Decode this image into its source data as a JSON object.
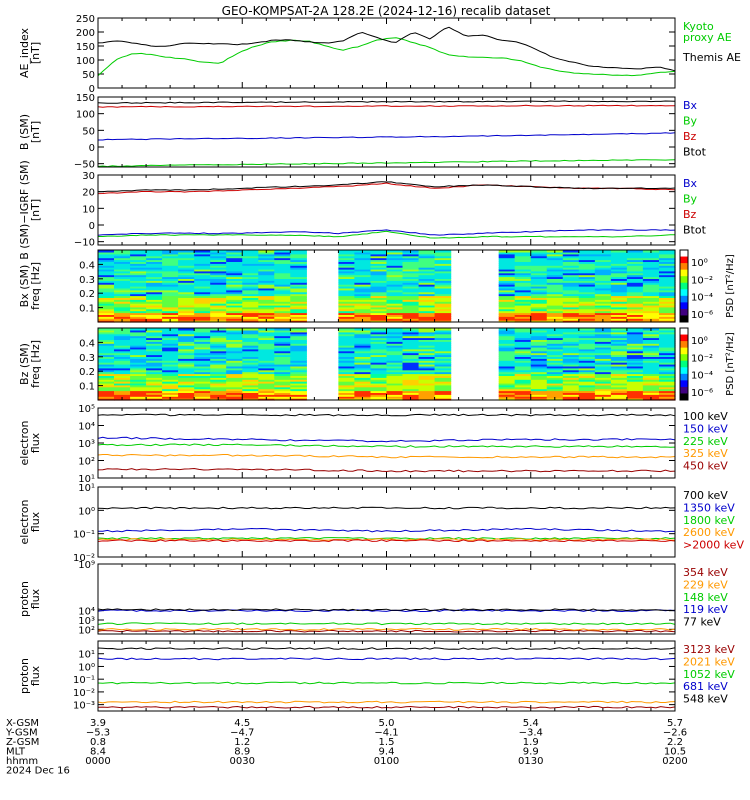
{
  "chart_data": {
    "type": "line",
    "title": "GEO-KOMPSAT-2A 128.2E (2024-12-16) recalib dataset",
    "x_range": [
      "0000",
      "0200"
    ],
    "panels": [
      {
        "id": "ae",
        "ylabel": [
          "AE_index",
          "[nT]"
        ],
        "ylim": [
          0,
          250
        ],
        "yscale": "linear",
        "yticks": [
          "0",
          "50",
          "100",
          "150",
          "200",
          "250"
        ],
        "series": [
          {
            "name": "Kyoto\nproxy AE",
            "color": "#00cc00",
            "values": [
              45,
              100,
              125,
              120,
              110,
              105,
              92,
              88,
              125,
              150,
              165,
              170,
              168,
              150,
              135,
              150,
              172,
              180,
              162,
              145,
              118,
              112,
              110,
              108,
              100,
              80,
              65,
              55,
              50,
              48,
              45,
              45,
              55,
              60
            ]
          },
          {
            "name": "Themis AE",
            "color": "#000000",
            "values": [
              160,
              170,
              160,
              150,
              150,
              160,
              158,
              158,
              155,
              160,
              170,
              172,
              165,
              160,
              168,
              200,
              180,
              160,
              200,
              175,
              220,
              185,
              190,
              170,
              165,
              140,
              110,
              95,
              80,
              75,
              70,
              68,
              75,
              62
            ]
          }
        ]
      },
      {
        "id": "bsm",
        "ylabel": [
          "B (SM)",
          "[nT]"
        ],
        "ylim": [
          -60,
          150
        ],
        "yscale": "linear",
        "yticks": [
          "−50",
          "0",
          "50",
          "100",
          "150"
        ],
        "series": [
          {
            "name": "Bx",
            "color": "#0000cc",
            "values": [
              22,
              24,
              26,
              28,
              30,
              32,
              35,
              38,
              42
            ]
          },
          {
            "name": "By",
            "color": "#00cc00",
            "values": [
              -58,
              -55,
              -52,
              -50,
              -48,
              -45,
              -42,
              -40,
              -38
            ]
          },
          {
            "name": "Bz",
            "color": "#cc0000",
            "values": [
              120,
              121,
              122,
              122,
              123,
              123,
              124,
              124,
              124
            ]
          },
          {
            "name": "Btot",
            "color": "#000000",
            "values": [
              132,
              133,
              134,
              135,
              136,
              136,
              137,
              137,
              137
            ]
          }
        ]
      },
      {
        "id": "bigrf",
        "ylabel": [
          "B (SM)−IGRF (SM)",
          "[nT]"
        ],
        "ylim": [
          -12,
          30
        ],
        "yscale": "linear",
        "yticks": [
          "−10",
          "0",
          "10",
          "20",
          "30"
        ],
        "series": [
          {
            "name": "Bx",
            "color": "#0000cc",
            "values": [
              -6,
              -5,
              -5,
              -5,
              -4,
              -5,
              -3,
              -6,
              -5,
              -4,
              -3,
              -3,
              -3
            ]
          },
          {
            "name": "By",
            "color": "#00cc00",
            "values": [
              -7,
              -6,
              -6,
              -6,
              -6,
              -7,
              -4,
              -8,
              -7,
              -7,
              -7,
              -7,
              -6
            ]
          },
          {
            "name": "Bz",
            "color": "#cc0000",
            "values": [
              19,
              20,
              20,
              21,
              22,
              23,
              25,
              22,
              24,
              23,
              22,
              22,
              21
            ]
          },
          {
            "name": "Btot",
            "color": "#000000",
            "values": [
              20,
              21,
              21,
              22,
              23,
              24,
              26,
              23,
              24,
              23,
              22,
              22,
              22
            ]
          }
        ]
      },
      {
        "id": "bxspec",
        "type": "heatmap",
        "ylabel": [
          "Bx (SM)",
          "freq [Hz]"
        ],
        "ylim": [
          0,
          0.5
        ],
        "yticks": [
          "0.1",
          "0.2",
          "0.3",
          "0.4"
        ],
        "colorbar_label": "PSD [nT²/Hz]",
        "colorbar_ticks": [
          "10⁰",
          "10⁻²",
          "10⁻⁴",
          "10⁻⁶"
        ],
        "gaps": [
          [
            0.372,
            0.404
          ],
          [
            0.637,
            0.668
          ]
        ]
      },
      {
        "id": "bzspec",
        "type": "heatmap",
        "ylabel": [
          "Bz (SM)",
          "freq [Hz]"
        ],
        "ylim": [
          0,
          0.5
        ],
        "yticks": [
          "0.1",
          "0.2",
          "0.3",
          "0.4"
        ],
        "colorbar_label": "PSD [nT²/Hz]",
        "colorbar_ticks": [
          "10⁰",
          "10⁻²",
          "10⁻⁴",
          "10⁻⁶"
        ],
        "gaps": [
          [
            0.372,
            0.404
          ],
          [
            0.637,
            0.668
          ]
        ]
      },
      {
        "id": "elow",
        "ylabel": [
          "electron",
          "flux"
        ],
        "ylim": [
          1,
          5
        ],
        "yscale": "log",
        "yticks": [
          "10¹",
          "10²",
          "10³",
          "10⁴",
          "10⁵"
        ],
        "series": [
          {
            "name": "100 keV",
            "color": "#000000",
            "values": [
              4.6,
              4.6,
              4.6,
              4.6,
              4.6
            ]
          },
          {
            "name": "150 keV",
            "color": "#0000cc",
            "values": [
              3.3,
              3.2,
              3.1,
              3.2,
              3.2
            ]
          },
          {
            "name": "225 keV",
            "color": "#00cc00",
            "values": [
              2.9,
              2.9,
              2.8,
              2.8,
              2.8
            ]
          },
          {
            "name": "325 keV",
            "color": "#ff9900",
            "values": [
              2.3,
              2.3,
              2.2,
              2.2,
              2.2
            ]
          },
          {
            "name": "450 keV",
            "color": "#990000",
            "values": [
              1.5,
              1.5,
              1.4,
              1.4,
              1.4
            ]
          }
        ]
      },
      {
        "id": "ehigh",
        "ylabel": [
          "electron",
          "flux"
        ],
        "ylim": [
          -2,
          1
        ],
        "yscale": "log",
        "yticks": [
          "10⁻²",
          "10⁻¹",
          "10⁰",
          "10¹"
        ],
        "series": [
          {
            "name": "700 keV",
            "color": "#000000",
            "values": [
              0.1,
              0.1,
              0.1,
              0.1,
              0.1
            ]
          },
          {
            "name": "1350 keV",
            "color": "#0000cc",
            "values": [
              -0.9,
              -0.8,
              -0.9,
              -0.8,
              -0.9
            ]
          },
          {
            "name": "1800 keV",
            "color": "#00cc00",
            "values": [
              -1.2,
              -1.2,
              -1.2,
              -1.2,
              -1.2
            ]
          },
          {
            "name": "2600 keV",
            "color": "#ff9900",
            "values": [
              -1.25,
              -1.25,
              -1.25,
              -1.25,
              -1.25
            ]
          },
          {
            "name": ">2000 keV",
            "color": "#cc0000",
            "values": [
              -1.3,
              -1.3,
              -1.3,
              -1.3,
              -1.3
            ]
          }
        ]
      },
      {
        "id": "plow",
        "ylabel": [
          "proton",
          "flux"
        ],
        "ylim": [
          1.5,
          9
        ],
        "yscale": "log",
        "yticks": [
          "10²",
          "10³",
          "10⁴",
          "10⁹"
        ],
        "series": [
          {
            "name": "354 keV",
            "color": "#990000",
            "values": [
              1.8,
              1.8,
              1.8,
              1.8,
              1.8
            ]
          },
          {
            "name": "229 keV",
            "color": "#ff9900",
            "values": [
              2.0,
              2.0,
              2.0,
              2.0,
              2.0
            ]
          },
          {
            "name": "148 keV",
            "color": "#00cc00",
            "values": [
              2.6,
              2.6,
              2.6,
              2.6,
              2.6
            ]
          },
          {
            "name": "119 keV",
            "color": "#0000cc",
            "values": [
              4.0,
              4.0,
              4.0,
              4.0,
              4.0
            ]
          },
          {
            "name": "77 keV",
            "color": "#000000",
            "values": [
              4.1,
              4.1,
              4.1,
              4.1,
              4.1
            ]
          }
        ]
      },
      {
        "id": "phigh",
        "ylabel": [
          "proton",
          "flux"
        ],
        "ylim": [
          -3.5,
          2
        ],
        "yscale": "log",
        "yticks": [
          "10⁻³",
          "10⁻²",
          "10⁻¹",
          "10⁰",
          "10¹"
        ],
        "series": [
          {
            "name": "3123 keV",
            "color": "#990000",
            "values": [
              -3.2,
              -3.2,
              -3.2,
              -3.2,
              -3.2
            ]
          },
          {
            "name": "2021 keV",
            "color": "#ff9900",
            "values": [
              -2.8,
              -2.8,
              -2.8,
              -2.8,
              -2.8
            ]
          },
          {
            "name": "1052 keV",
            "color": "#00cc00",
            "values": [
              -1.3,
              -1.3,
              -1.3,
              -1.3,
              -1.3
            ]
          },
          {
            "name": "681 keV",
            "color": "#0000cc",
            "values": [
              0.6,
              0.6,
              0.6,
              0.6,
              0.6
            ]
          },
          {
            "name": "548 keV",
            "color": "#000000",
            "values": [
              1.4,
              1.4,
              1.4,
              1.4,
              1.4
            ]
          }
        ]
      }
    ],
    "ephemeris": {
      "labels": [
        "X-GSM",
        "Y-GSM",
        "Z-GSM",
        "MLT",
        "hhmm",
        "2024 Dec 16"
      ],
      "columns": [
        [
          "3.9",
          "−5.3",
          "0.8",
          "8.4",
          "0000"
        ],
        [
          "4.5",
          "−4.7",
          "1.2",
          "8.9",
          "0030"
        ],
        [
          "5.0",
          "−4.1",
          "1.5",
          "9.4",
          "0100"
        ],
        [
          "5.4",
          "−3.4",
          "1.9",
          "9.9",
          "0130"
        ],
        [
          "5.7",
          "−2.6",
          "2.2",
          "10.5",
          "0200"
        ]
      ]
    }
  }
}
